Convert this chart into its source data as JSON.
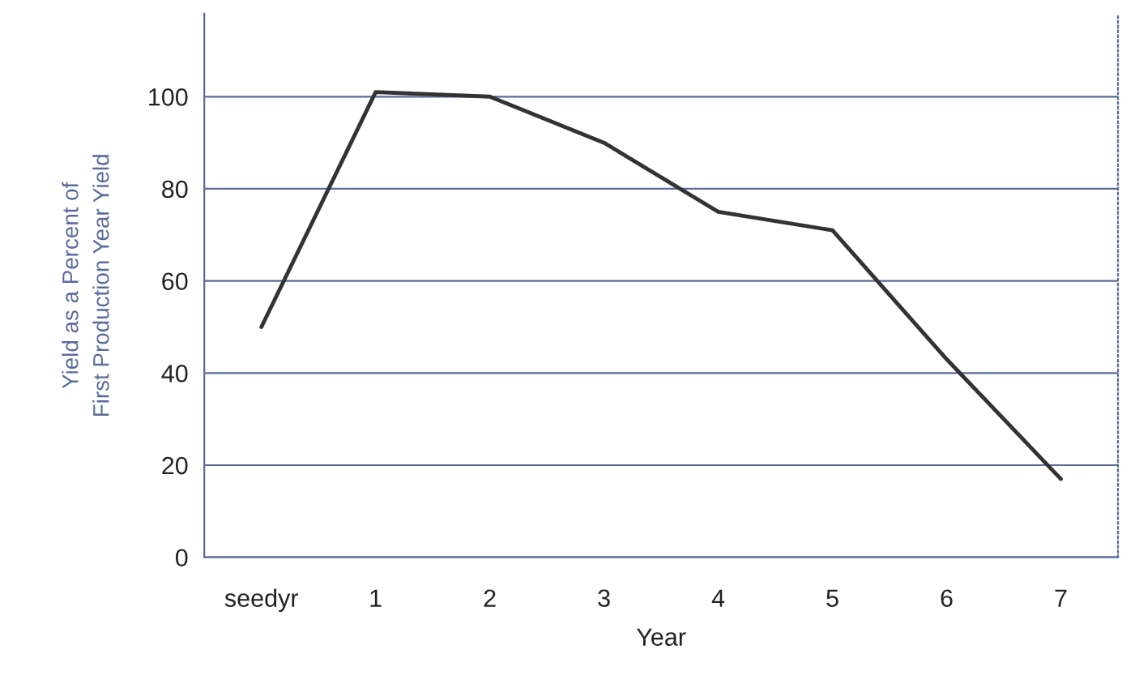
{
  "chart_data": {
    "type": "line",
    "xlabel": "Year",
    "ylabel": "Yield as a Percent of\nFirst Production Year Yield",
    "categories": [
      "seedyr",
      "1",
      "2",
      "3",
      "4",
      "5",
      "6",
      "7"
    ],
    "series": [
      {
        "color": "#333333",
        "values": [
          50,
          101,
          100,
          90,
          75,
          71,
          43,
          17
        ]
      }
    ],
    "ylim": [
      0,
      118
    ],
    "yticks": [
      0,
      20,
      40,
      60,
      80,
      100
    ],
    "grid": "y",
    "marker": "none",
    "line_style": "solid"
  }
}
